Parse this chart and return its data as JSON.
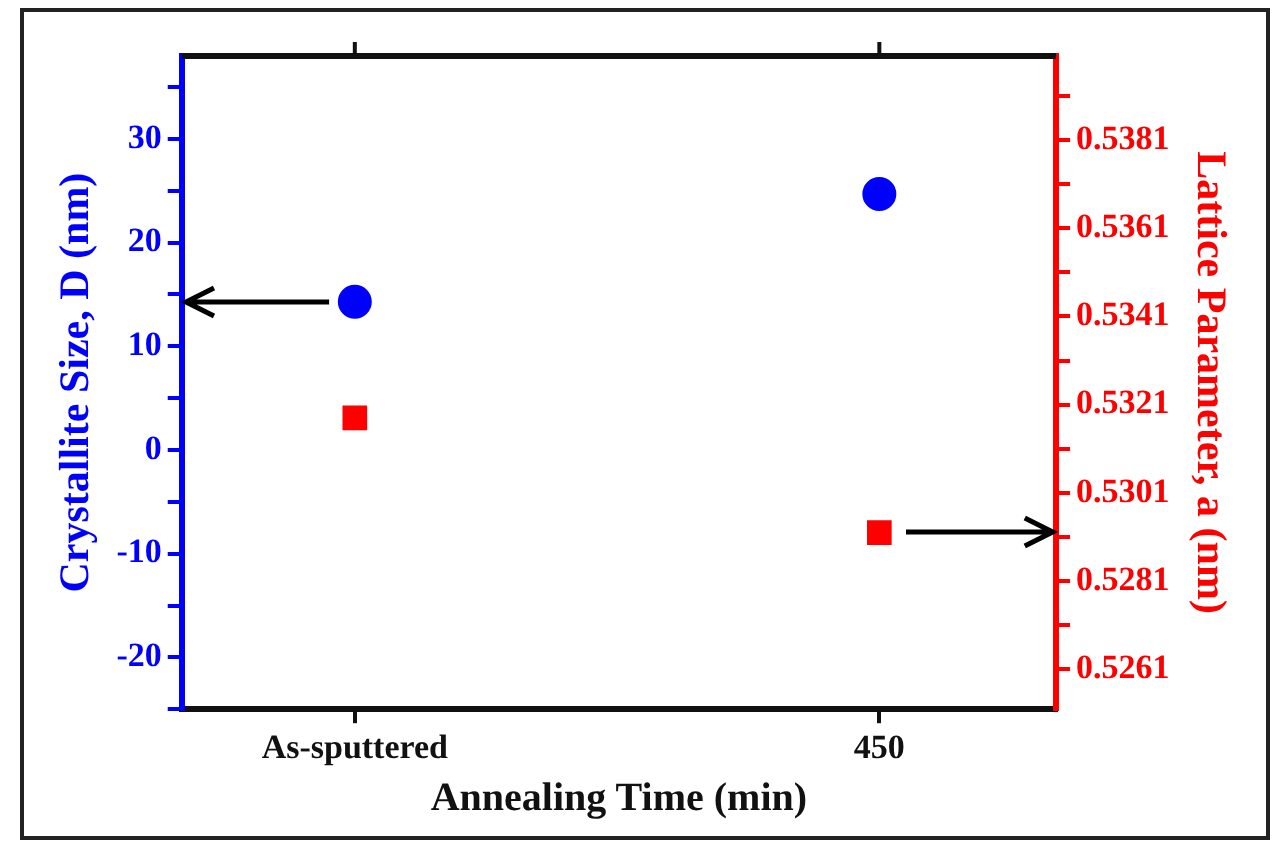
{
  "chart_data": {
    "type": "scatter",
    "xlabel": "Annealing Time (min)",
    "ylabel": "Crystallite Size, D (nm)",
    "y2label": "Lattice Parameter, a (nm)",
    "categories": [
      "As-sputtered",
      "450"
    ],
    "series": [
      {
        "color": "#0000ff",
        "marker": "circle",
        "values": [
          14.3,
          24.7
        ]
      },
      {
        "color": "#ff0000",
        "marker": "square",
        "axis": "y2",
        "values": [
          0.5318,
          0.5292
        ]
      }
    ],
    "ylim": [
      -25,
      38
    ],
    "yticks": [
      {
        "value": -25,
        "label": null
      },
      -20,
      {
        "value": -15,
        "label": null
      },
      -10,
      {
        "value": -5,
        "label": null
      },
      0,
      {
        "value": 5,
        "label": null
      },
      10,
      {
        "value": 15,
        "label": null
      },
      20,
      {
        "value": 25,
        "label": null
      },
      30,
      {
        "value": 35,
        "label": null
      }
    ],
    "y2lim": [
      0.5252,
      0.54
    ],
    "y2ticks": [
      0.5261,
      {
        "value": 0.5271,
        "label": null
      },
      0.5281,
      {
        "value": 0.5291,
        "label": null
      },
      0.5301,
      {
        "value": 0.5311,
        "label": null
      },
      0.5321,
      {
        "value": 0.5331,
        "label": null
      },
      0.5341,
      {
        "value": 0.5351,
        "label": null
      },
      0.5361,
      {
        "value": 0.5371,
        "label": null
      },
      0.5381,
      {
        "value": 0.5391,
        "label": null
      }
    ],
    "grid": false,
    "legend": false
  }
}
